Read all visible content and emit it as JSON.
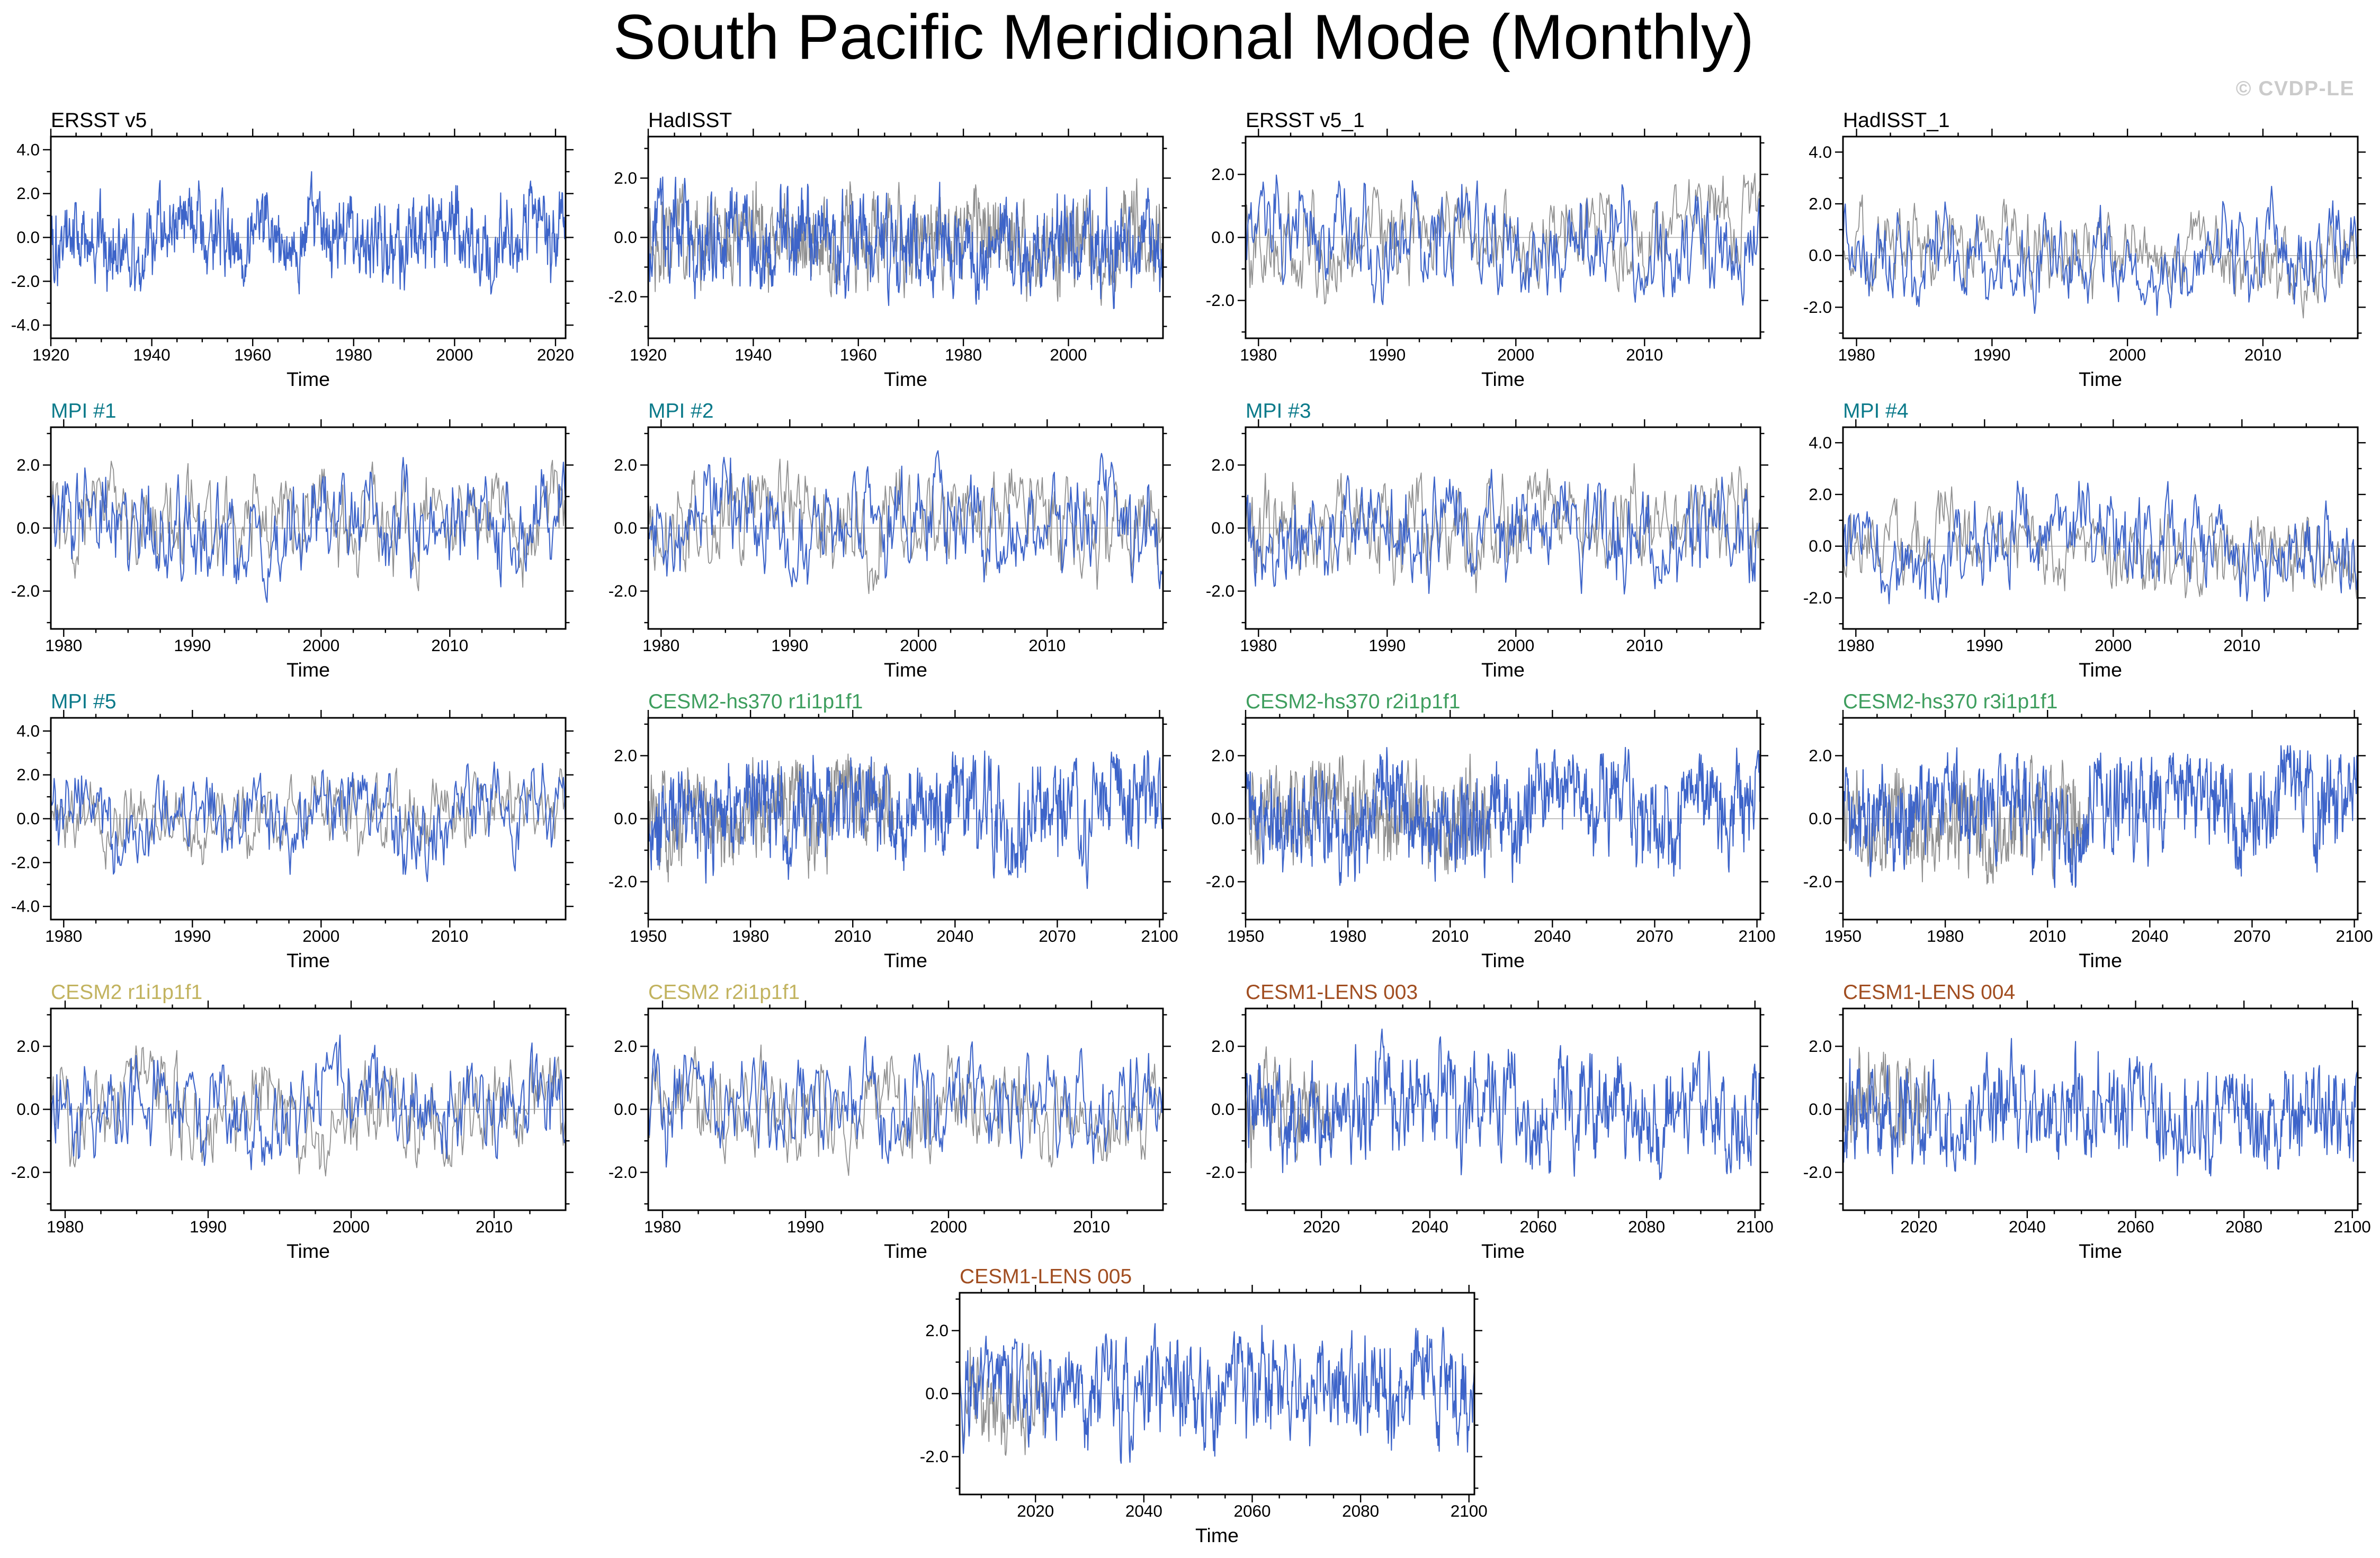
{
  "page": {
    "title": "South Pacific Meridional Mode (Monthly)",
    "watermark": "© CVDP-LE"
  },
  "colors": {
    "model_line": "#3D64C9",
    "reference_line": "#909090",
    "obs_title": "#000000",
    "mpi_title": "#0B7A8A",
    "cesm2_hs370_title": "#3E9E5E",
    "cesm2_title": "#C2B35F",
    "cesm1_lens_title": "#A14E21",
    "zero_line": "#aaaaaa",
    "frame": "#000000"
  },
  "chart_data": [
    {
      "title": "ERSST v5",
      "title_color": "#000000",
      "type": "line",
      "xlabel": "Time",
      "xlim": [
        1920,
        2022
      ],
      "xticks": [
        1920,
        1940,
        1960,
        1980,
        2000,
        2020
      ],
      "xminor": 4,
      "ylim": [
        -4.6,
        4.6
      ],
      "yticks": [
        -4,
        -2,
        0,
        2,
        4
      ],
      "ytick_labels": [
        "-4.0",
        "-2.0",
        "0.0",
        "2.0",
        "4.0"
      ],
      "grid": {
        "row": 1,
        "col": 1
      },
      "series": [
        {
          "name": "ERSST v5",
          "color": "#3D64C9",
          "x0": 1920,
          "x1": 2022,
          "n": 1000,
          "sigma": 1.05,
          "trend": 0,
          "seed": 101,
          "width": 0.7
        }
      ]
    },
    {
      "title": "HadISST",
      "title_color": "#000000",
      "type": "line",
      "xlabel": "Time",
      "xlim": [
        1920,
        2018
      ],
      "xticks": [
        1920,
        1940,
        1960,
        1980,
        2000
      ],
      "xminor": 4,
      "ylim": [
        -3.4,
        3.4
      ],
      "yticks": [
        -2,
        0,
        2
      ],
      "ytick_labels": [
        "-2.0",
        "0.0",
        "2.0"
      ],
      "grid": {
        "row": 1,
        "col": 2
      },
      "series": [
        {
          "name": "reference",
          "color": "#909090",
          "x0": 1920,
          "x1": 2018,
          "n": 960,
          "sigma": 0.9,
          "trend": 0,
          "seed": 201,
          "width": 0.6
        },
        {
          "name": "HadISST",
          "color": "#3D64C9",
          "x0": 1920,
          "x1": 2018,
          "n": 960,
          "sigma": 0.95,
          "trend": 0,
          "seed": 202,
          "width": 0.7
        }
      ]
    },
    {
      "title": "ERSST v5_1",
      "title_color": "#000000",
      "type": "line",
      "xlabel": "Time",
      "xlim": [
        1979,
        2019
      ],
      "xticks": [
        1980,
        1990,
        2000,
        2010
      ],
      "xminor": 4,
      "ylim": [
        -3.2,
        3.2
      ],
      "yticks": [
        -2,
        0,
        2
      ],
      "ytick_labels": [
        "-2.0",
        "0.0",
        "2.0"
      ],
      "grid": {
        "row": 1,
        "col": 3
      },
      "series": [
        {
          "name": "reference",
          "color": "#909090",
          "x0": 1979,
          "x1": 2019,
          "n": 470,
          "sigma": 0.9,
          "trend": 0,
          "seed": 301,
          "width": 0.6
        },
        {
          "name": "ERSST v5_1",
          "color": "#3D64C9",
          "x0": 1979,
          "x1": 2019,
          "n": 470,
          "sigma": 0.95,
          "trend": 0,
          "seed": 302,
          "width": 0.7
        }
      ]
    },
    {
      "title": "HadISST_1",
      "title_color": "#000000",
      "type": "line",
      "xlabel": "Time",
      "xlim": [
        1979,
        2017
      ],
      "xticks": [
        1980,
        1990,
        2000,
        2010
      ],
      "xminor": 4,
      "ylim": [
        -3.2,
        4.6
      ],
      "yticks": [
        -2,
        0,
        2,
        4
      ],
      "ytick_labels": [
        "-2.0",
        "0.0",
        "2.0",
        "4.0"
      ],
      "grid": {
        "row": 1,
        "col": 4
      },
      "series": [
        {
          "name": "reference",
          "color": "#909090",
          "x0": 1979,
          "x1": 2017,
          "n": 455,
          "sigma": 0.9,
          "trend": 0,
          "seed": 401,
          "width": 0.6
        },
        {
          "name": "HadISST_1",
          "color": "#3D64C9",
          "x0": 1979,
          "x1": 2017,
          "n": 455,
          "sigma": 1.0,
          "trend": 0,
          "seed": 402,
          "width": 0.7
        }
      ]
    },
    {
      "title": "MPI #1",
      "title_color": "#0B7A8A",
      "type": "line",
      "xlabel": "Time",
      "xlim": [
        1979,
        2019
      ],
      "xticks": [
        1980,
        1990,
        2000,
        2010
      ],
      "xminor": 4,
      "ylim": [
        -3.2,
        3.2
      ],
      "yticks": [
        -2,
        0,
        2
      ],
      "ytick_labels": [
        "-2.0",
        "0.0",
        "2.0"
      ],
      "grid": {
        "row": 2,
        "col": 1
      },
      "series": [
        {
          "name": "reference",
          "color": "#909090",
          "x0": 1979,
          "x1": 2019,
          "n": 470,
          "sigma": 0.9,
          "trend": 0,
          "seed": 501,
          "width": 0.6
        },
        {
          "name": "MPI #1",
          "color": "#3D64C9",
          "x0": 1979,
          "x1": 2019,
          "n": 470,
          "sigma": 0.95,
          "trend": 0,
          "seed": 502,
          "width": 0.7
        }
      ]
    },
    {
      "title": "MPI #2",
      "title_color": "#0B7A8A",
      "type": "line",
      "xlabel": "Time",
      "xlim": [
        1979,
        2019
      ],
      "xticks": [
        1980,
        1990,
        2000,
        2010
      ],
      "xminor": 4,
      "ylim": [
        -3.2,
        3.2
      ],
      "yticks": [
        -2,
        0,
        2
      ],
      "ytick_labels": [
        "-2.0",
        "0.0",
        "2.0"
      ],
      "grid": {
        "row": 2,
        "col": 2
      },
      "series": [
        {
          "name": "reference",
          "color": "#909090",
          "x0": 1979,
          "x1": 2019,
          "n": 470,
          "sigma": 0.9,
          "trend": 0,
          "seed": 601,
          "width": 0.6
        },
        {
          "name": "MPI #2",
          "color": "#3D64C9",
          "x0": 1979,
          "x1": 2019,
          "n": 470,
          "sigma": 0.95,
          "trend": 0,
          "seed": 602,
          "width": 0.7
        }
      ]
    },
    {
      "title": "MPI #3",
      "title_color": "#0B7A8A",
      "type": "line",
      "xlabel": "Time",
      "xlim": [
        1979,
        2019
      ],
      "xticks": [
        1980,
        1990,
        2000,
        2010
      ],
      "xminor": 4,
      "ylim": [
        -3.2,
        3.2
      ],
      "yticks": [
        -2,
        0,
        2
      ],
      "ytick_labels": [
        "-2.0",
        "0.0",
        "2.0"
      ],
      "grid": {
        "row": 2,
        "col": 3
      },
      "series": [
        {
          "name": "reference",
          "color": "#909090",
          "x0": 1979,
          "x1": 2019,
          "n": 470,
          "sigma": 0.9,
          "trend": 0,
          "seed": 701,
          "width": 0.6
        },
        {
          "name": "MPI #3",
          "color": "#3D64C9",
          "x0": 1979,
          "x1": 2019,
          "n": 470,
          "sigma": 0.95,
          "trend": 0,
          "seed": 702,
          "width": 0.7
        }
      ]
    },
    {
      "title": "MPI #4",
      "title_color": "#0B7A8A",
      "type": "line",
      "xlabel": "Time",
      "xlim": [
        1979,
        2019
      ],
      "xticks": [
        1980,
        1990,
        2000,
        2010
      ],
      "xminor": 4,
      "ylim": [
        -3.2,
        4.6
      ],
      "yticks": [
        -2,
        0,
        2,
        4
      ],
      "ytick_labels": [
        "-2.0",
        "0.0",
        "2.0",
        "4.0"
      ],
      "grid": {
        "row": 2,
        "col": 4
      },
      "series": [
        {
          "name": "reference",
          "color": "#909090",
          "x0": 1979,
          "x1": 2019,
          "n": 470,
          "sigma": 0.9,
          "trend": 0,
          "seed": 801,
          "width": 0.6
        },
        {
          "name": "MPI #4",
          "color": "#3D64C9",
          "x0": 1979,
          "x1": 2019,
          "n": 470,
          "sigma": 1.0,
          "trend": 0,
          "seed": 802,
          "width": 0.7
        }
      ]
    },
    {
      "title": "MPI #5",
      "title_color": "#0B7A8A",
      "type": "line",
      "xlabel": "Time",
      "xlim": [
        1979,
        2019
      ],
      "xticks": [
        1980,
        1990,
        2000,
        2010
      ],
      "xminor": 4,
      "ylim": [
        -4.6,
        4.6
      ],
      "yticks": [
        -4,
        -2,
        0,
        2,
        4
      ],
      "ytick_labels": [
        "-4.0",
        "-2.0",
        "0.0",
        "2.0",
        "4.0"
      ],
      "grid": {
        "row": 3,
        "col": 1
      },
      "series": [
        {
          "name": "reference",
          "color": "#909090",
          "x0": 1979,
          "x1": 2019,
          "n": 470,
          "sigma": 0.95,
          "trend": 0,
          "seed": 901,
          "width": 0.6
        },
        {
          "name": "MPI #5",
          "color": "#3D64C9",
          "x0": 1979,
          "x1": 2019,
          "n": 470,
          "sigma": 1.1,
          "trend": 0,
          "seed": 902,
          "width": 0.7
        }
      ]
    },
    {
      "title": "CESM2-hs370 r1i1p1f1",
      "title_color": "#3E9E5E",
      "type": "line",
      "xlabel": "Time",
      "xlim": [
        1950,
        2101
      ],
      "xticks": [
        1950,
        1980,
        2010,
        2040,
        2070,
        2100
      ],
      "xminor": 3,
      "ylim": [
        -3.2,
        3.2
      ],
      "yticks": [
        -2,
        0,
        2
      ],
      "ytick_labels": [
        "-2.0",
        "0.0",
        "2.0"
      ],
      "grid": {
        "row": 3,
        "col": 2
      },
      "series": [
        {
          "name": "reference",
          "color": "#909090",
          "x0": 1950,
          "x1": 2022,
          "n": 480,
          "sigma": 0.9,
          "trend": 0,
          "seed": 1001,
          "width": 0.6
        },
        {
          "name": "CESM2-hs370 r1i1p1f1",
          "color": "#3D64C9",
          "x0": 1950,
          "x1": 2101,
          "n": 1000,
          "sigma": 0.95,
          "trend": 0.6,
          "seed": 1002,
          "width": 0.7
        }
      ]
    },
    {
      "title": "CESM2-hs370 r2i1p1f1",
      "title_color": "#3E9E5E",
      "type": "line",
      "xlabel": "Time",
      "xlim": [
        1950,
        2101
      ],
      "xticks": [
        1950,
        1980,
        2010,
        2040,
        2070,
        2100
      ],
      "xminor": 3,
      "ylim": [
        -3.2,
        3.2
      ],
      "yticks": [
        -2,
        0,
        2
      ],
      "ytick_labels": [
        "-2.0",
        "0.0",
        "2.0"
      ],
      "grid": {
        "row": 3,
        "col": 3
      },
      "series": [
        {
          "name": "reference",
          "color": "#909090",
          "x0": 1950,
          "x1": 2022,
          "n": 480,
          "sigma": 0.9,
          "trend": 0,
          "seed": 1101,
          "width": 0.6
        },
        {
          "name": "CESM2-hs370 r2i1p1f1",
          "color": "#3D64C9",
          "x0": 1950,
          "x1": 2101,
          "n": 1000,
          "sigma": 0.95,
          "trend": 0.6,
          "seed": 1102,
          "width": 0.7
        }
      ]
    },
    {
      "title": "CESM2-hs370 r3i1p1f1",
      "title_color": "#3E9E5E",
      "type": "line",
      "xlabel": "Time",
      "xlim": [
        1950,
        2101
      ],
      "xticks": [
        1950,
        1980,
        2010,
        2040,
        2070,
        2100
      ],
      "xminor": 3,
      "ylim": [
        -3.2,
        3.2
      ],
      "yticks": [
        -2,
        0,
        2
      ],
      "ytick_labels": [
        "-2.0",
        "0.0",
        "2.0"
      ],
      "grid": {
        "row": 3,
        "col": 4
      },
      "series": [
        {
          "name": "reference",
          "color": "#909090",
          "x0": 1950,
          "x1": 2022,
          "n": 480,
          "sigma": 0.9,
          "trend": 0,
          "seed": 1201,
          "width": 0.6
        },
        {
          "name": "CESM2-hs370 r3i1p1f1",
          "color": "#3D64C9",
          "x0": 1950,
          "x1": 2101,
          "n": 1000,
          "sigma": 0.95,
          "trend": 0.6,
          "seed": 1202,
          "width": 0.7
        }
      ]
    },
    {
      "title": "CESM2 r1i1p1f1",
      "title_color": "#C2B35F",
      "type": "line",
      "xlabel": "Time",
      "xlim": [
        1979,
        2015
      ],
      "xticks": [
        1980,
        1990,
        2000,
        2010
      ],
      "xminor": 4,
      "ylim": [
        -3.2,
        3.2
      ],
      "yticks": [
        -2,
        0,
        2
      ],
      "ytick_labels": [
        "-2.0",
        "0.0",
        "2.0"
      ],
      "grid": {
        "row": 4,
        "col": 1
      },
      "series": [
        {
          "name": "reference",
          "color": "#909090",
          "x0": 1979,
          "x1": 2015,
          "n": 430,
          "sigma": 0.9,
          "trend": 0,
          "seed": 1301,
          "width": 0.6
        },
        {
          "name": "CESM2 r1i1p1f1",
          "color": "#3D64C9",
          "x0": 1979,
          "x1": 2015,
          "n": 430,
          "sigma": 0.95,
          "trend": 0,
          "seed": 1302,
          "width": 0.7
        }
      ]
    },
    {
      "title": "CESM2 r2i1p1f1",
      "title_color": "#C2B35F",
      "type": "line",
      "xlabel": "Time",
      "xlim": [
        1979,
        2015
      ],
      "xticks": [
        1980,
        1990,
        2000,
        2010
      ],
      "xminor": 4,
      "ylim": [
        -3.2,
        3.2
      ],
      "yticks": [
        -2,
        0,
        2
      ],
      "ytick_labels": [
        "-2.0",
        "0.0",
        "2.0"
      ],
      "grid": {
        "row": 4,
        "col": 2
      },
      "series": [
        {
          "name": "reference",
          "color": "#909090",
          "x0": 1979,
          "x1": 2015,
          "n": 430,
          "sigma": 0.9,
          "trend": 0,
          "seed": 1401,
          "width": 0.6
        },
        {
          "name": "CESM2 r2i1p1f1",
          "color": "#3D64C9",
          "x0": 1979,
          "x1": 2015,
          "n": 430,
          "sigma": 0.95,
          "trend": 0,
          "seed": 1402,
          "width": 0.7
        }
      ]
    },
    {
      "title": "CESM1-LENS 003",
      "title_color": "#A14E21",
      "type": "line",
      "xlabel": "Time",
      "xlim": [
        2006,
        2101
      ],
      "xticks": [
        2020,
        2040,
        2060,
        2080,
        2100
      ],
      "xminor": 4,
      "ylim": [
        -3.2,
        3.2
      ],
      "yticks": [
        -2,
        0,
        2
      ],
      "ytick_labels": [
        "-2.0",
        "0.0",
        "2.0"
      ],
      "grid": {
        "row": 4,
        "col": 3
      },
      "series": [
        {
          "name": "reference",
          "color": "#909090",
          "x0": 2006,
          "x1": 2022,
          "n": 140,
          "sigma": 0.9,
          "trend": 0,
          "seed": 1501,
          "width": 0.6
        },
        {
          "name": "CESM1-LENS 003",
          "color": "#3D64C9",
          "x0": 2006,
          "x1": 2101,
          "n": 820,
          "sigma": 0.95,
          "trend": 0,
          "seed": 1502,
          "width": 0.7
        }
      ]
    },
    {
      "title": "CESM1-LENS 004",
      "title_color": "#A14E21",
      "type": "line",
      "xlabel": "Time",
      "xlim": [
        2006,
        2101
      ],
      "xticks": [
        2020,
        2040,
        2060,
        2080,
        2100
      ],
      "xminor": 4,
      "ylim": [
        -3.2,
        3.2
      ],
      "yticks": [
        -2,
        0,
        2
      ],
      "ytick_labels": [
        "-2.0",
        "0.0",
        "2.0"
      ],
      "grid": {
        "row": 4,
        "col": 4
      },
      "series": [
        {
          "name": "reference",
          "color": "#909090",
          "x0": 2006,
          "x1": 2022,
          "n": 140,
          "sigma": 0.9,
          "trend": 0,
          "seed": 1601,
          "width": 0.6
        },
        {
          "name": "CESM1-LENS 004",
          "color": "#3D64C9",
          "x0": 2006,
          "x1": 2101,
          "n": 820,
          "sigma": 0.95,
          "trend": 0,
          "seed": 1602,
          "width": 0.7
        }
      ]
    },
    {
      "title": "CESM1-LENS 005",
      "title_color": "#A14E21",
      "type": "line",
      "xlabel": "Time",
      "xlim": [
        2006,
        2101
      ],
      "xticks": [
        2020,
        2040,
        2060,
        2080,
        2100
      ],
      "xminor": 4,
      "ylim": [
        -3.2,
        3.2
      ],
      "yticks": [
        -2,
        0,
        2
      ],
      "ytick_labels": [
        "-2.0",
        "0.0",
        "2.0"
      ],
      "grid": {
        "row": 5,
        "col": "center"
      },
      "series": [
        {
          "name": "reference",
          "color": "#909090",
          "x0": 2006,
          "x1": 2022,
          "n": 140,
          "sigma": 0.9,
          "trend": 0,
          "seed": 1701,
          "width": 0.6
        },
        {
          "name": "CESM1-LENS 005",
          "color": "#3D64C9",
          "x0": 2006,
          "x1": 2101,
          "n": 820,
          "sigma": 0.95,
          "trend": 0,
          "seed": 1702,
          "width": 0.7
        }
      ]
    }
  ]
}
